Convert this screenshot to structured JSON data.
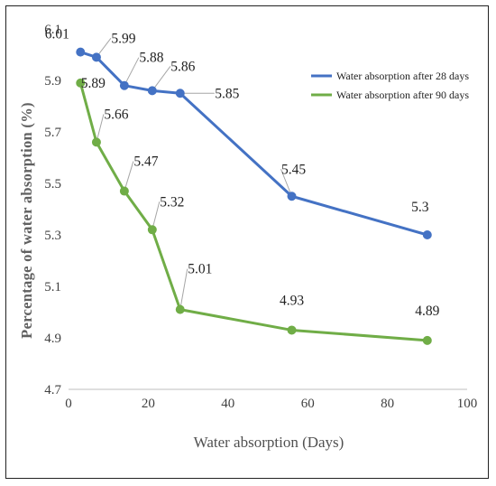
{
  "chart_data": {
    "type": "line",
    "title": "",
    "xlabel": "Water absorption (Days)",
    "ylabel": "Percentage of water absorption (%)",
    "xlim": [
      0,
      100
    ],
    "ylim": [
      4.7,
      6.1
    ],
    "x_ticks": [
      0,
      20,
      40,
      60,
      80,
      100
    ],
    "y_ticks": [
      4.7,
      4.9,
      5.1,
      5.3,
      5.5,
      5.7,
      5.9,
      6.1
    ],
    "grid": false,
    "legend_position": "top-right",
    "series": [
      {
        "name": "Water absorption after 28 days",
        "color": "#4472c4",
        "x": [
          3,
          7,
          14,
          21,
          28,
          56,
          90
        ],
        "values": [
          6.01,
          5.99,
          5.88,
          5.86,
          5.85,
          5.45,
          5.3
        ],
        "labels": [
          "6.01",
          "5.99",
          "5.88",
          "5.86",
          "5.85",
          "5.45",
          "5.3"
        ]
      },
      {
        "name": "Water absorption after 90 days",
        "color": "#70ad47",
        "x": [
          3,
          7,
          14,
          21,
          28,
          56,
          90
        ],
        "values": [
          5.89,
          5.66,
          5.47,
          5.32,
          5.01,
          4.93,
          4.89
        ],
        "labels": [
          "5.89",
          "5.66",
          "5.47",
          "5.32",
          "5.01",
          "4.93",
          "4.89"
        ]
      }
    ]
  }
}
